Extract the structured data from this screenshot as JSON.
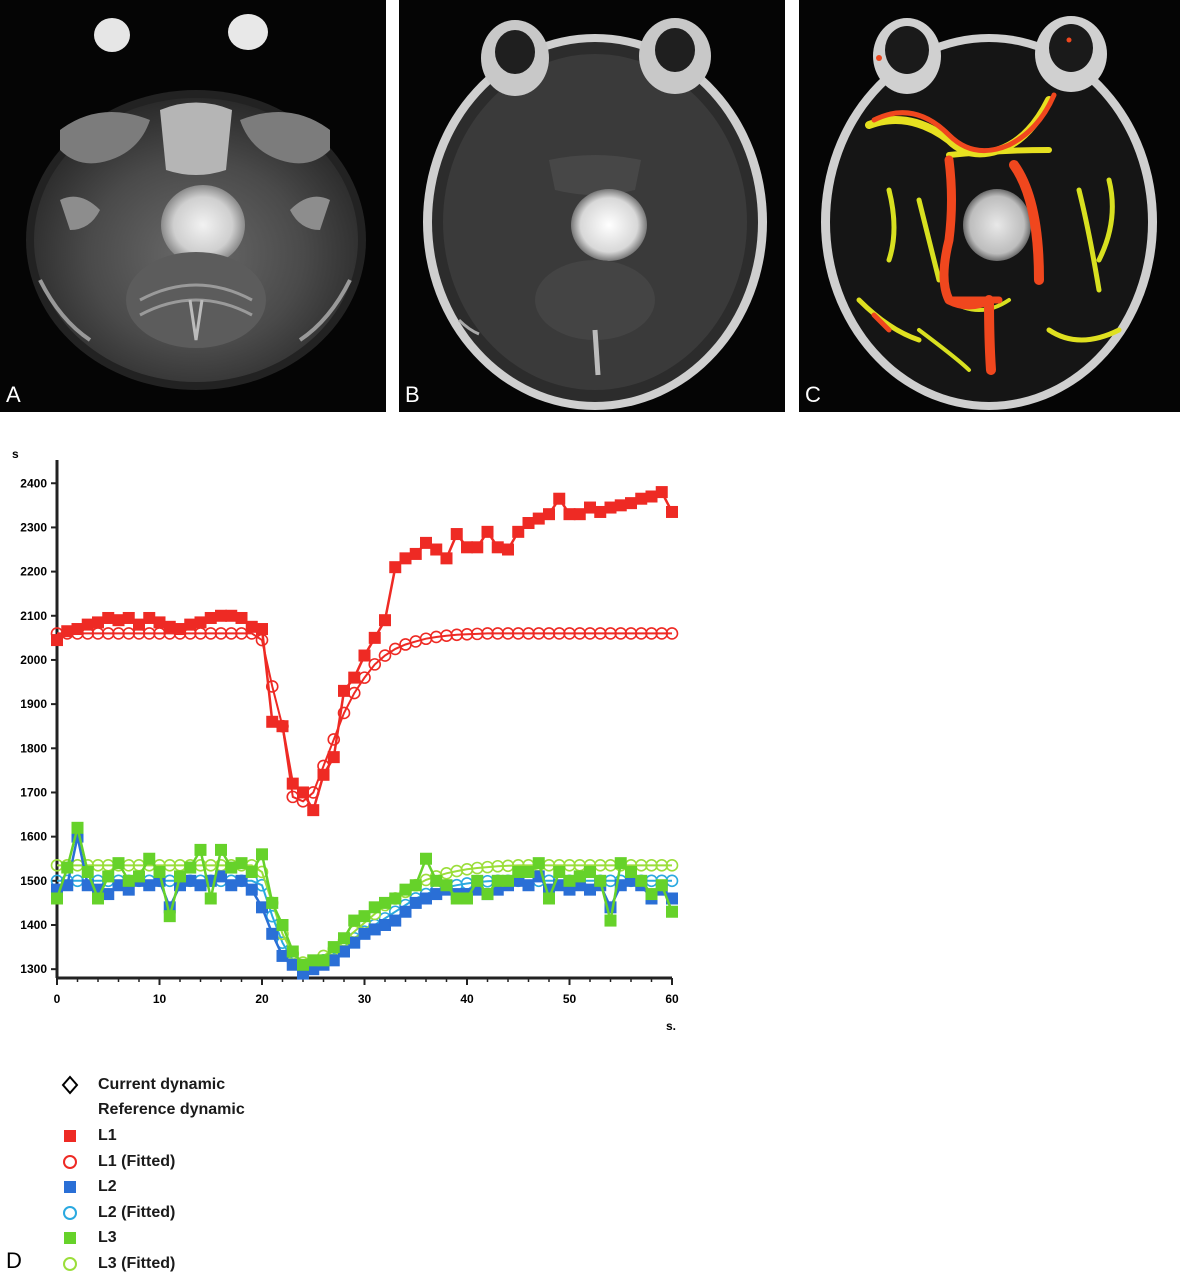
{
  "panels": {
    "a": {
      "letter": "A"
    },
    "b": {
      "letter": "B"
    },
    "c": {
      "letter": "C"
    },
    "d": {
      "letter": "D"
    }
  },
  "chart_data": {
    "type": "line",
    "xlabel": "s.",
    "ylabel": "s",
    "xlim": [
      0,
      60
    ],
    "ylim": [
      1280,
      2430
    ],
    "x_ticks": [
      0,
      10,
      20,
      30,
      40,
      50,
      60
    ],
    "y_ticks": [
      1300,
      1400,
      1500,
      1600,
      1700,
      1800,
      1900,
      2000,
      2100,
      2200,
      2300,
      2400
    ],
    "grid": false,
    "legend": {
      "placement": "below",
      "entries": [
        {
          "label": "Current dynamic",
          "marker": "diamond-open",
          "color": "#000000"
        },
        {
          "label": "Reference dynamic",
          "marker": "none",
          "color": "#000000"
        },
        {
          "label": "L1",
          "marker": "square-filled",
          "color": "#ee2a24"
        },
        {
          "label": "L1 (Fitted)",
          "marker": "circle-open",
          "color": "#ee2a24"
        },
        {
          "label": "L2",
          "marker": "square-filled",
          "color": "#2a6fd6"
        },
        {
          "label": "L2 (Fitted)",
          "marker": "circle-open",
          "color": "#2aa9e0"
        },
        {
          "label": "L3",
          "marker": "square-filled",
          "color": "#66d22a"
        },
        {
          "label": "L3 (Fitted)",
          "marker": "circle-open",
          "color": "#9bde3a"
        }
      ]
    },
    "series": [
      {
        "name": "L1",
        "color": "#ee2a24",
        "marker": "square",
        "x": [
          0,
          1,
          2,
          3,
          4,
          5,
          6,
          7,
          8,
          9,
          10,
          11,
          12,
          13,
          14,
          15,
          16,
          17,
          18,
          19,
          20,
          21,
          22,
          23,
          24,
          25,
          26,
          27,
          28,
          29,
          30,
          31,
          32,
          33,
          34,
          35,
          36,
          37,
          38,
          39,
          40,
          41,
          42,
          43,
          44,
          45,
          46,
          47,
          48,
          49,
          50,
          51,
          52,
          53,
          54,
          55,
          56,
          57,
          58,
          59,
          60
        ],
        "y": [
          2045,
          2065,
          2070,
          2080,
          2085,
          2095,
          2090,
          2095,
          2080,
          2095,
          2085,
          2075,
          2070,
          2080,
          2085,
          2095,
          2100,
          2100,
          2095,
          2075,
          2070,
          1860,
          1850,
          1720,
          1700,
          1660,
          1740,
          1780,
          1930,
          1960,
          2010,
          2050,
          2090,
          2210,
          2230,
          2240,
          2265,
          2250,
          2230,
          2285,
          2255,
          2255,
          2290,
          2255,
          2250,
          2290,
          2310,
          2320,
          2330,
          2365,
          2330,
          2330,
          2345,
          2335,
          2345,
          2350,
          2355,
          2365,
          2370,
          2380,
          2335
        ]
      },
      {
        "name": "L1 (Fitted)",
        "color": "#ee2a24",
        "marker": "circle-open",
        "x": [
          0,
          1,
          2,
          3,
          4,
          5,
          6,
          7,
          8,
          9,
          10,
          11,
          12,
          13,
          14,
          15,
          16,
          17,
          18,
          19,
          20,
          21,
          22,
          23,
          24,
          25,
          26,
          27,
          28,
          29,
          30,
          31,
          32,
          33,
          34,
          35,
          36,
          37,
          38,
          39,
          40,
          41,
          42,
          43,
          44,
          45,
          46,
          47,
          48,
          49,
          50,
          51,
          52,
          53,
          54,
          55,
          56,
          57,
          58,
          59,
          60
        ],
        "y": [
          2060,
          2060,
          2060,
          2060,
          2060,
          2060,
          2060,
          2060,
          2060,
          2060,
          2060,
          2060,
          2060,
          2060,
          2060,
          2060,
          2060,
          2060,
          2060,
          2060,
          2045,
          1940,
          1850,
          1690,
          1680,
          1700,
          1760,
          1820,
          1880,
          1925,
          1960,
          1990,
          2010,
          2025,
          2035,
          2042,
          2048,
          2052,
          2055,
          2057,
          2058,
          2059,
          2060,
          2060,
          2060,
          2060,
          2060,
          2060,
          2060,
          2060,
          2060,
          2060,
          2060,
          2060,
          2060,
          2060,
          2060,
          2060,
          2060,
          2060,
          2060
        ]
      },
      {
        "name": "L2",
        "color": "#2a6fd6",
        "marker": "square",
        "x": [
          0,
          1,
          2,
          3,
          4,
          5,
          6,
          7,
          8,
          9,
          10,
          11,
          12,
          13,
          14,
          15,
          16,
          17,
          18,
          19,
          20,
          21,
          22,
          23,
          24,
          25,
          26,
          27,
          28,
          29,
          30,
          31,
          32,
          33,
          34,
          35,
          36,
          37,
          38,
          39,
          40,
          41,
          42,
          43,
          44,
          45,
          46,
          47,
          48,
          49,
          50,
          51,
          52,
          53,
          54,
          55,
          56,
          57,
          58,
          59,
          60
        ],
        "y": [
          1480,
          1490,
          1600,
          1490,
          1480,
          1470,
          1490,
          1480,
          1500,
          1490,
          1500,
          1440,
          1490,
          1500,
          1490,
          1500,
          1510,
          1490,
          1500,
          1480,
          1440,
          1380,
          1330,
          1310,
          1290,
          1300,
          1310,
          1320,
          1340,
          1360,
          1380,
          1390,
          1400,
          1410,
          1430,
          1450,
          1460,
          1470,
          1480,
          1470,
          1470,
          1480,
          1470,
          1480,
          1490,
          1500,
          1490,
          1510,
          1480,
          1490,
          1480,
          1490,
          1480,
          1490,
          1440,
          1490,
          1500,
          1490,
          1460,
          1480,
          1460
        ]
      },
      {
        "name": "L2 (Fitted)",
        "color": "#2aa9e0",
        "marker": "circle-open",
        "x": [
          0,
          1,
          2,
          3,
          4,
          5,
          6,
          7,
          8,
          9,
          10,
          11,
          12,
          13,
          14,
          15,
          16,
          17,
          18,
          19,
          20,
          21,
          22,
          23,
          24,
          25,
          26,
          27,
          28,
          29,
          30,
          31,
          32,
          33,
          34,
          35,
          36,
          37,
          38,
          39,
          40,
          41,
          42,
          43,
          44,
          45,
          46,
          47,
          48,
          49,
          50,
          51,
          52,
          53,
          54,
          55,
          56,
          57,
          58,
          59,
          60
        ],
        "y": [
          1500,
          1500,
          1500,
          1500,
          1500,
          1500,
          1500,
          1500,
          1500,
          1500,
          1500,
          1500,
          1500,
          1500,
          1500,
          1500,
          1500,
          1500,
          1500,
          1500,
          1490,
          1420,
          1360,
          1320,
          1305,
          1310,
          1320,
          1335,
          1350,
          1370,
          1385,
          1400,
          1415,
          1430,
          1445,
          1460,
          1470,
          1478,
          1485,
          1490,
          1494,
          1497,
          1499,
          1500,
          1500,
          1500,
          1500,
          1500,
          1500,
          1500,
          1500,
          1500,
          1500,
          1500,
          1500,
          1500,
          1500,
          1500,
          1500,
          1500,
          1500
        ]
      },
      {
        "name": "L3",
        "color": "#66d22a",
        "marker": "square",
        "x": [
          0,
          1,
          2,
          3,
          4,
          5,
          6,
          7,
          8,
          9,
          10,
          11,
          12,
          13,
          14,
          15,
          16,
          17,
          18,
          19,
          20,
          21,
          22,
          23,
          24,
          25,
          26,
          27,
          28,
          29,
          30,
          31,
          32,
          33,
          34,
          35,
          36,
          37,
          38,
          39,
          40,
          41,
          42,
          43,
          44,
          45,
          46,
          47,
          48,
          49,
          50,
          51,
          52,
          53,
          54,
          55,
          56,
          57,
          58,
          59,
          60
        ],
        "y": [
          1460,
          1530,
          1620,
          1520,
          1460,
          1510,
          1540,
          1500,
          1510,
          1550,
          1520,
          1420,
          1510,
          1530,
          1570,
          1460,
          1570,
          1530,
          1540,
          1520,
          1560,
          1450,
          1400,
          1340,
          1310,
          1320,
          1320,
          1350,
          1370,
          1410,
          1420,
          1440,
          1450,
          1460,
          1480,
          1490,
          1550,
          1500,
          1490,
          1460,
          1460,
          1500,
          1470,
          1500,
          1500,
          1520,
          1520,
          1540,
          1460,
          1520,
          1500,
          1510,
          1520,
          1500,
          1410,
          1540,
          1520,
          1500,
          1470,
          1490,
          1430
        ]
      },
      {
        "name": "L3 (Fitted)",
        "color": "#9bde3a",
        "marker": "circle-open",
        "x": [
          0,
          1,
          2,
          3,
          4,
          5,
          6,
          7,
          8,
          9,
          10,
          11,
          12,
          13,
          14,
          15,
          16,
          17,
          18,
          19,
          20,
          21,
          22,
          23,
          24,
          25,
          26,
          27,
          28,
          29,
          30,
          31,
          32,
          33,
          34,
          35,
          36,
          37,
          38,
          39,
          40,
          41,
          42,
          43,
          44,
          45,
          46,
          47,
          48,
          49,
          50,
          51,
          52,
          53,
          54,
          55,
          56,
          57,
          58,
          59,
          60
        ],
        "y": [
          1535,
          1535,
          1535,
          1535,
          1535,
          1535,
          1535,
          1535,
          1535,
          1535,
          1535,
          1535,
          1535,
          1535,
          1535,
          1535,
          1535,
          1535,
          1535,
          1535,
          1520,
          1450,
          1380,
          1335,
          1315,
          1318,
          1330,
          1345,
          1365,
          1385,
          1405,
          1425,
          1445,
          1460,
          1475,
          1490,
          1502,
          1510,
          1517,
          1522,
          1526,
          1529,
          1531,
          1533,
          1534,
          1535,
          1535,
          1535,
          1535,
          1535,
          1535,
          1535,
          1535,
          1535,
          1535,
          1535,
          1535,
          1535,
          1535,
          1535,
          1535
        ]
      }
    ]
  }
}
